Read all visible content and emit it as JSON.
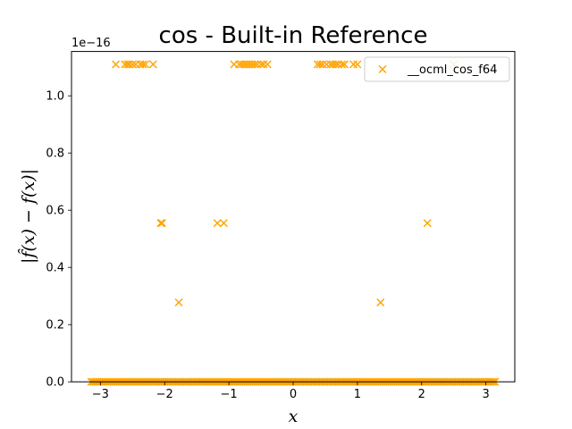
{
  "chart_data": {
    "type": "scatter",
    "title": "cos - Built-in Reference",
    "xlabel": "x",
    "ylabel": "|f̂(x) − f(x)|",
    "offset_text": "1e−16",
    "xlim": [
      -3.45,
      3.45
    ],
    "ylim": [
      0,
      1.155
    ],
    "xticks": [
      -3,
      -2,
      -1,
      0,
      1,
      2,
      3
    ],
    "xtick_labels": [
      "−3",
      "−2",
      "−1",
      "0",
      "1",
      "2",
      "3"
    ],
    "yticks": [
      0.0,
      0.2,
      0.4,
      0.6,
      0.8,
      1.0
    ],
    "ytick_labels": [
      "0.0",
      "0.2",
      "0.4",
      "0.6",
      "0.8",
      "1.0"
    ],
    "grid": false,
    "legend": {
      "placement": "top-right",
      "entries": [
        "__ocml_cos_f64"
      ]
    },
    "series": [
      {
        "name": "__ocml_cos_f64",
        "marker": "x",
        "color": "#FFA500",
        "points": [
          [
            -2.76,
            1.11
          ],
          [
            -2.62,
            1.11
          ],
          [
            -2.58,
            1.11
          ],
          [
            -2.55,
            1.11
          ],
          [
            -2.5,
            1.11
          ],
          [
            -2.45,
            1.11
          ],
          [
            -2.38,
            1.11
          ],
          [
            -2.34,
            1.11
          ],
          [
            -2.3,
            1.11
          ],
          [
            -2.18,
            1.11
          ],
          [
            -0.92,
            1.11
          ],
          [
            -0.84,
            1.11
          ],
          [
            -0.8,
            1.11
          ],
          [
            -0.76,
            1.11
          ],
          [
            -0.72,
            1.11
          ],
          [
            -0.68,
            1.11
          ],
          [
            -0.64,
            1.11
          ],
          [
            -0.6,
            1.11
          ],
          [
            -0.56,
            1.11
          ],
          [
            -0.5,
            1.11
          ],
          [
            -0.46,
            1.11
          ],
          [
            -0.4,
            1.11
          ],
          [
            0.38,
            1.11
          ],
          [
            0.42,
            1.11
          ],
          [
            0.46,
            1.11
          ],
          [
            0.52,
            1.11
          ],
          [
            0.58,
            1.11
          ],
          [
            0.62,
            1.11
          ],
          [
            0.66,
            1.11
          ],
          [
            0.7,
            1.11
          ],
          [
            0.76,
            1.11
          ],
          [
            0.8,
            1.11
          ],
          [
            0.94,
            1.11
          ],
          [
            1.0,
            1.11
          ],
          [
            2.5,
            1.11
          ],
          [
            -2.06,
            0.555
          ],
          [
            -2.04,
            0.555
          ],
          [
            -1.18,
            0.555
          ],
          [
            -1.08,
            0.555
          ],
          [
            2.09,
            0.555
          ],
          [
            -1.78,
            0.2776
          ],
          [
            1.36,
            0.2776
          ]
        ],
        "zero_band": {
          "x_range": [
            -3.14159,
            3.14159
          ],
          "y": 0,
          "count": 200
        }
      }
    ]
  }
}
